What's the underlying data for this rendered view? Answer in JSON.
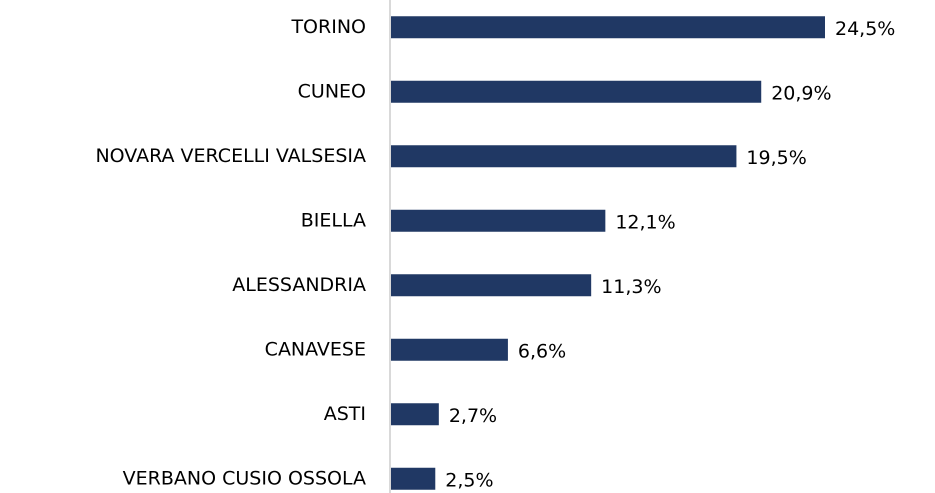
{
  "chart_data": {
    "type": "hbar",
    "categories": [
      "TORINO",
      "CUNEO",
      "NOVARA VERCELLI VALSESIA",
      "BIELLA",
      "ALESSANDRIA",
      "CANAVESE",
      "ASTI",
      "VERBANO CUSIO OSSOLA"
    ],
    "values": [
      24.5,
      20.9,
      19.5,
      12.1,
      11.3,
      6.6,
      2.7,
      2.5
    ],
    "value_labels": [
      "24,5%",
      "20,9%",
      "19,5%",
      "12,1%",
      "11,3%",
      "6,6%",
      "2,7%",
      "2,5%"
    ],
    "color": "#203864",
    "xlim": [
      0,
      28
    ]
  }
}
